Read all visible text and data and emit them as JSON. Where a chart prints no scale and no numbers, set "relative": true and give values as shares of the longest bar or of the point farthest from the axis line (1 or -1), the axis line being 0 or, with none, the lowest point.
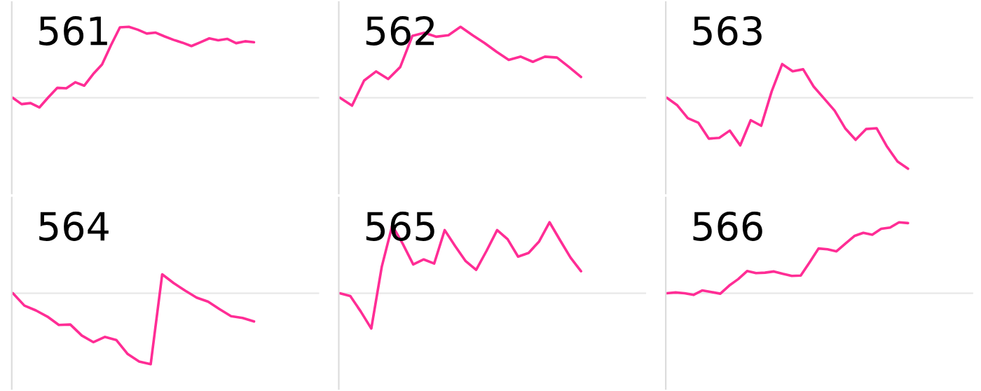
{
  "chart_data": [
    {
      "type": "line",
      "title": "561",
      "relative": true,
      "color": "#ff2d95",
      "categories": [
        null,
        null,
        null,
        null,
        null,
        null,
        null,
        null,
        null,
        null,
        null,
        null,
        null,
        null,
        null,
        null,
        null,
        null,
        null,
        null,
        null,
        null,
        null,
        null,
        null,
        null,
        null,
        null
      ],
      "values": [
        0,
        -0.09,
        -0.075,
        -0.136,
        0.007,
        0.14,
        0.133,
        0.218,
        0.17,
        0.333,
        0.469,
        0.741,
        0.993,
        1,
        0.959,
        0.905,
        0.918,
        0.864,
        0.816,
        0.776,
        0.728,
        0.782,
        0.837,
        0.81,
        0.83,
        0.769,
        0.796,
        0.782
      ]
    },
    {
      "type": "line",
      "title": "562",
      "relative": true,
      "color": "#ff2d95",
      "categories": [
        null,
        null,
        null,
        null,
        null,
        null,
        null,
        null,
        null,
        null,
        null,
        null,
        null,
        null,
        null,
        null,
        null,
        null,
        null,
        null,
        null
      ],
      "values": [
        0,
        -0.112,
        0.242,
        0.371,
        0.264,
        0.433,
        0.871,
        0.916,
        0.86,
        0.882,
        1,
        0.882,
        0.77,
        0.646,
        0.534,
        0.579,
        0.506,
        0.579,
        0.567,
        0.433,
        0.292
      ]
    },
    {
      "type": "line",
      "title": "563",
      "relative": true,
      "color": "#ff2d95",
      "categories": [
        null,
        null,
        null,
        null,
        null,
        null,
        null,
        null,
        null,
        null,
        null,
        null,
        null,
        null,
        null,
        null,
        null,
        null,
        null,
        null,
        null,
        null,
        null,
        null
      ],
      "values": [
        0,
        -0.107,
        -0.288,
        -0.351,
        -0.576,
        -0.565,
        -0.463,
        -0.672,
        -0.316,
        -0.395,
        0.09,
        0.475,
        0.373,
        0.401,
        0.158,
        -0.011,
        -0.181,
        -0.429,
        -0.593,
        -0.441,
        -0.429,
        -0.689,
        -0.898,
        -1
      ]
    },
    {
      "type": "line",
      "title": "564",
      "relative": true,
      "color": "#ff2d95",
      "categories": [
        null,
        null,
        null,
        null,
        null,
        null,
        null,
        null,
        null,
        null,
        null,
        null,
        null,
        null,
        null,
        null,
        null,
        null,
        null,
        null,
        null,
        null
      ],
      "values": [
        0,
        -0.174,
        -0.242,
        -0.329,
        -0.447,
        -0.441,
        -0.596,
        -0.689,
        -0.615,
        -0.658,
        -0.857,
        -0.963,
        -1,
        0.267,
        0.143,
        0.037,
        -0.062,
        -0.118,
        -0.224,
        -0.323,
        -0.348,
        -0.398
      ]
    },
    {
      "type": "line",
      "title": "565",
      "relative": true,
      "color": "#ff2d95",
      "categories": [
        null,
        null,
        null,
        null,
        null,
        null,
        null,
        null,
        null,
        null,
        null,
        null,
        null,
        null,
        null,
        null,
        null,
        null,
        null,
        null,
        null,
        null,
        null,
        null
      ],
      "values": [
        0,
        -0.039,
        -0.258,
        -0.497,
        0.374,
        0.955,
        0.697,
        0.406,
        0.477,
        0.419,
        0.89,
        0.665,
        0.452,
        0.329,
        0.6,
        0.89,
        0.761,
        0.516,
        0.568,
        0.729,
        1,
        0.748,
        0.503,
        0.31
      ]
    },
    {
      "type": "line",
      "title": "566",
      "relative": true,
      "color": "#ff2d95",
      "categories": [
        null,
        null,
        null,
        null,
        null,
        null,
        null,
        null,
        null,
        null,
        null,
        null,
        null,
        null,
        null,
        null,
        null,
        null,
        null,
        null,
        null,
        null,
        null,
        null,
        null,
        null,
        null,
        null
      ],
      "values": [
        0,
        0.011,
        0,
        -0.023,
        0.04,
        0.017,
        -0.006,
        0.108,
        0.199,
        0.313,
        0.284,
        0.29,
        0.307,
        0.273,
        0.244,
        0.25,
        0.438,
        0.631,
        0.619,
        0.591,
        0.699,
        0.807,
        0.852,
        0.824,
        0.909,
        0.926,
        1,
        0.989
      ]
    }
  ]
}
